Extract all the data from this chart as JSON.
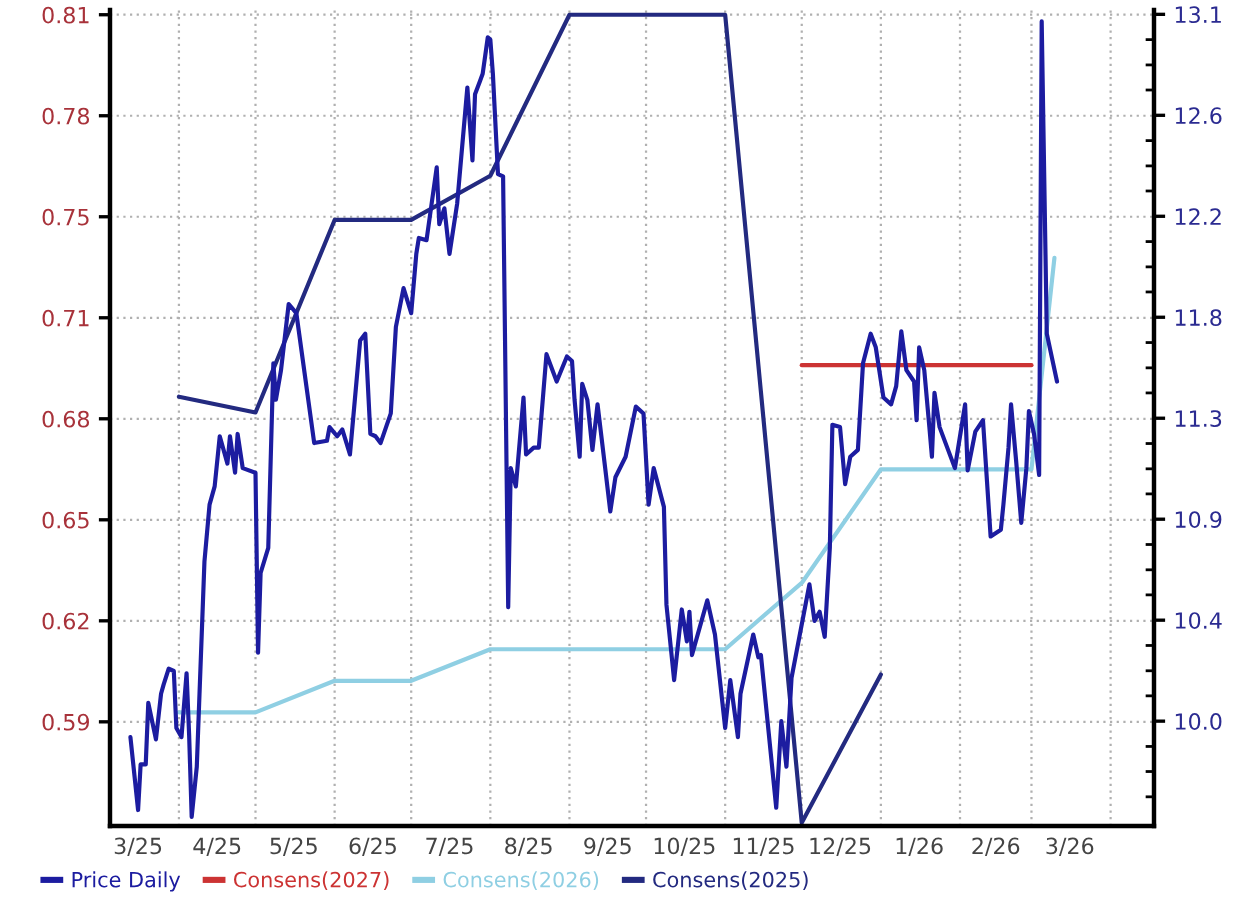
{
  "chart_data": {
    "type": "line",
    "xlim": [
      "2025-03-05",
      "2026-04-18"
    ],
    "xticks": [
      {
        "value": "2025-03-16",
        "label": "3/25"
      },
      {
        "value": "2025-04-16",
        "label": "4/25"
      },
      {
        "value": "2025-05-16",
        "label": "5/25"
      },
      {
        "value": "2025-06-16",
        "label": "6/25"
      },
      {
        "value": "2025-07-16",
        "label": "7/25"
      },
      {
        "value": "2025-08-16",
        "label": "8/25"
      },
      {
        "value": "2025-09-16",
        "label": "9/25"
      },
      {
        "value": "2025-10-16",
        "label": "10/25"
      },
      {
        "value": "2025-11-16",
        "label": "11/25"
      },
      {
        "value": "2025-12-16",
        "label": "12/25"
      },
      {
        "value": "2026-01-16",
        "label": "1/26"
      },
      {
        "value": "2026-02-15",
        "label": "2/26"
      },
      {
        "value": "2026-03-16",
        "label": "3/26"
      },
      {
        "value": "2025-04-01",
        "label": null
      },
      {
        "value": "2025-05-01",
        "label": null
      },
      {
        "value": "2025-06-01",
        "label": null
      },
      {
        "value": "2025-07-01",
        "label": null
      },
      {
        "value": "2025-08-01",
        "label": null
      },
      {
        "value": "2025-09-01",
        "label": null
      },
      {
        "value": "2025-10-01",
        "label": null
      },
      {
        "value": "2025-11-01",
        "label": null
      },
      {
        "value": "2025-12-01",
        "label": null
      },
      {
        "value": "2026-01-01",
        "label": null
      },
      {
        "value": "2026-02-01",
        "label": null
      },
      {
        "value": "2026-03-01",
        "label": null
      },
      {
        "value": "2026-04-01",
        "label": null
      }
    ],
    "ylim": [
      0.552,
      0.8105
    ],
    "yticks": [
      {
        "value": 0.585,
        "label": "0.59"
      },
      {
        "value": 0.617,
        "label": "0.62"
      },
      {
        "value": 0.649,
        "label": "0.65"
      },
      {
        "value": 0.681,
        "label": "0.68"
      },
      {
        "value": 0.713,
        "label": "0.71"
      },
      {
        "value": 0.745,
        "label": "0.75"
      },
      {
        "value": 0.777,
        "label": "0.78"
      },
      {
        "value": 0.809,
        "label": "0.81"
      }
    ],
    "y2lim": [
      9.52,
      13.1
    ],
    "y2ticks": [
      {
        "value": 9.98,
        "label": "10.0"
      },
      {
        "value": 10.423,
        "label": "10.4"
      },
      {
        "value": 10.866,
        "label": "10.9"
      },
      {
        "value": 11.309,
        "label": "11.3"
      },
      {
        "value": 11.752,
        "label": "11.8"
      },
      {
        "value": 12.195,
        "label": "12.2"
      },
      {
        "value": 12.638,
        "label": "12.6"
      },
      {
        "value": 13.081,
        "label": "13.1"
      },
      {
        "value": 9.648,
        "label": null
      },
      {
        "value": 9.759,
        "label": null
      },
      {
        "value": 9.869,
        "label": null
      },
      {
        "value": 10.091,
        "label": null
      },
      {
        "value": 10.201,
        "label": null
      },
      {
        "value": 10.312,
        "label": null
      },
      {
        "value": 10.534,
        "label": null
      },
      {
        "value": 10.644,
        "label": null
      },
      {
        "value": 10.755,
        "label": null
      },
      {
        "value": 10.977,
        "label": null
      },
      {
        "value": 11.087,
        "label": null
      },
      {
        "value": 11.198,
        "label": null
      },
      {
        "value": 11.42,
        "label": null
      },
      {
        "value": 11.53,
        "label": null
      },
      {
        "value": 11.641,
        "label": null
      },
      {
        "value": 11.863,
        "label": null
      },
      {
        "value": 11.973,
        "label": null
      },
      {
        "value": 12.084,
        "label": null
      },
      {
        "value": 12.306,
        "label": null
      },
      {
        "value": 12.416,
        "label": null
      },
      {
        "value": 12.527,
        "label": null
      },
      {
        "value": 12.749,
        "label": null
      },
      {
        "value": 12.859,
        "label": null
      },
      {
        "value": 12.97,
        "label": null
      }
    ],
    "grid": true,
    "legend": "bottom",
    "series": [
      {
        "name": "Price Daily",
        "color": "#1c1ca0",
        "axis": "y2",
        "x": [
          "2025-03-13",
          "2025-03-16",
          "2025-03-17",
          "2025-03-19",
          "2025-03-20",
          "2025-03-23",
          "2025-03-25",
          "2025-03-26",
          "2025-03-28",
          "2025-03-30",
          "2025-03-31",
          "2025-04-02",
          "2025-04-04",
          "2025-04-05",
          "2025-04-06",
          "2025-04-08",
          "2025-04-11",
          "2025-04-13",
          "2025-04-15",
          "2025-04-17",
          "2025-04-20",
          "2025-04-21",
          "2025-04-23",
          "2025-04-24",
          "2025-04-26",
          "2025-05-01",
          "2025-05-02",
          "2025-05-03",
          "2025-05-06",
          "2025-05-08",
          "2025-05-09",
          "2025-05-11",
          "2025-05-14",
          "2025-05-17",
          "2025-05-24",
          "2025-05-29",
          "2025-05-30",
          "2025-06-02",
          "2025-06-04",
          "2025-06-07",
          "2025-06-11",
          "2025-06-13",
          "2025-06-15",
          "2025-06-17",
          "2025-06-19",
          "2025-06-23",
          "2025-06-25",
          "2025-06-28",
          "2025-07-01",
          "2025-07-03",
          "2025-07-04",
          "2025-07-07",
          "2025-07-11",
          "2025-07-12",
          "2025-07-14",
          "2025-07-16",
          "2025-07-19",
          "2025-07-23",
          "2025-07-25",
          "2025-07-26",
          "2025-07-28",
          "2025-07-29",
          "2025-07-31",
          "2025-08-01",
          "2025-08-02",
          "2025-08-04",
          "2025-08-06",
          "2025-08-08",
          "2025-08-09",
          "2025-08-11",
          "2025-08-14",
          "2025-08-15",
          "2025-08-18",
          "2025-08-20",
          "2025-08-23",
          "2025-08-27",
          "2025-08-31",
          "2025-09-02",
          "2025-09-03",
          "2025-09-05",
          "2025-09-06",
          "2025-09-08",
          "2025-09-10",
          "2025-09-12",
          "2025-09-15",
          "2025-09-17",
          "2025-09-19",
          "2025-09-23",
          "2025-09-27",
          "2025-09-30",
          "2025-10-02",
          "2025-10-04",
          "2025-10-08",
          "2025-10-09",
          "2025-10-12",
          "2025-10-15",
          "2025-10-17",
          "2025-10-18",
          "2025-10-19",
          "2025-10-25",
          "2025-10-28",
          "2025-11-01",
          "2025-11-03",
          "2025-11-06",
          "2025-11-07",
          "2025-11-12",
          "2025-11-14",
          "2025-11-15",
          "2025-11-21",
          "2025-11-23",
          "2025-11-25",
          "2025-11-27",
          "2025-12-04",
          "2025-12-06",
          "2025-12-08",
          "2025-12-10",
          "2025-12-12",
          "2025-12-13",
          "2025-12-16",
          "2025-12-18",
          "2025-12-20",
          "2025-12-23",
          "2025-12-25",
          "2025-12-28",
          "2025-12-30",
          "2026-01-02",
          "2026-01-05",
          "2026-01-07",
          "2026-01-09",
          "2026-01-11",
          "2026-01-14",
          "2026-01-15",
          "2026-01-16",
          "2026-01-18",
          "2026-01-20",
          "2026-01-21",
          "2026-01-22",
          "2026-01-24",
          "2026-01-27",
          "2026-01-30",
          "2026-02-03",
          "2026-02-04",
          "2026-02-07",
          "2026-02-10",
          "2026-02-13",
          "2026-02-17",
          "2026-02-18",
          "2026-02-20",
          "2026-02-21",
          "2026-02-23",
          "2026-02-25",
          "2026-02-27",
          "2026-02-28",
          "2026-03-02",
          "2026-03-04",
          "2026-03-05",
          "2026-03-07",
          "2026-03-11"
        ],
        "values": [
          9.91,
          9.59,
          9.79,
          9.79,
          10.06,
          9.9,
          10.1,
          10.14,
          10.21,
          10.2,
          9.95,
          9.91,
          10.19,
          9.92,
          9.56,
          9.78,
          10.68,
          10.93,
          11.01,
          11.23,
          11.11,
          11.23,
          11.07,
          11.24,
          11.09,
          11.07,
          10.28,
          10.63,
          10.74,
          11.55,
          11.39,
          11.52,
          11.81,
          11.77,
          11.2,
          11.21,
          11.27,
          11.23,
          11.26,
          11.15,
          11.65,
          11.68,
          11.24,
          11.23,
          11.2,
          11.33,
          11.71,
          11.88,
          11.77,
          12.03,
          12.1,
          12.09,
          12.41,
          12.16,
          12.23,
          12.03,
          12.25,
          12.76,
          12.44,
          12.73,
          12.79,
          12.82,
          12.98,
          12.97,
          12.82,
          12.38,
          12.37,
          10.48,
          11.09,
          11.01,
          11.4,
          11.15,
          11.18,
          11.18,
          11.59,
          11.47,
          11.58,
          11.56,
          11.39,
          11.14,
          11.46,
          11.39,
          11.17,
          11.37,
          11.09,
          10.9,
          11.05,
          11.14,
          11.36,
          11.33,
          10.93,
          11.09,
          10.92,
          10.49,
          10.16,
          10.47,
          10.33,
          10.46,
          10.27,
          10.51,
          10.36,
          9.95,
          10.16,
          9.91,
          10.1,
          10.36,
          10.26,
          10.27,
          9.6,
          9.98,
          9.78,
          10.17,
          10.58,
          10.42,
          10.46,
          10.35,
          10.74,
          11.28,
          11.27,
          11.02,
          11.14,
          11.17,
          11.55,
          11.68,
          11.62,
          11.4,
          11.37,
          11.45,
          11.69,
          11.52,
          11.47,
          11.3,
          11.62,
          11.52,
          11.27,
          11.14,
          11.42,
          11.27,
          11.18,
          11.09,
          11.37,
          11.08,
          11.25,
          11.3,
          10.79,
          10.82,
          10.93,
          11.18,
          11.37,
          11.12,
          10.85,
          11.09,
          11.34,
          11.24,
          11.06,
          13.05,
          11.68,
          11.47
        ]
      },
      {
        "name": "Consens(2027)",
        "color": "#cc3333",
        "x": [
          "2025-12-01",
          "2026-01-01",
          "2026-02-01",
          "2026-03-01"
        ],
        "values": [
          0.698,
          0.698,
          0.698,
          0.698
        ]
      },
      {
        "name": "Consens(2026)",
        "color": "#8fcfe3",
        "x": [
          "2025-04-01",
          "2025-05-01",
          "2025-06-01",
          "2025-07-01",
          "2025-08-01",
          "2025-09-01",
          "2025-10-01",
          "2025-11-01",
          "2025-12-01",
          "2026-01-01",
          "2026-02-01",
          "2026-03-01",
          "2026-03-10"
        ],
        "values": [
          0.588,
          0.588,
          0.598,
          0.598,
          0.608,
          0.608,
          0.608,
          0.608,
          0.629,
          0.665,
          0.665,
          0.665,
          0.732
        ]
      },
      {
        "name": "Consens(2025)",
        "color": "#232a80",
        "x": [
          "2025-04-01",
          "2025-05-01",
          "2025-06-01",
          "2025-07-01",
          "2025-08-01",
          "2025-09-01",
          "2025-11-01",
          "2025-12-01",
          "2026-01-01"
        ],
        "values": [
          0.688,
          0.683,
          0.744,
          0.744,
          0.758,
          0.809,
          0.809,
          0.553,
          0.6
        ]
      }
    ]
  }
}
